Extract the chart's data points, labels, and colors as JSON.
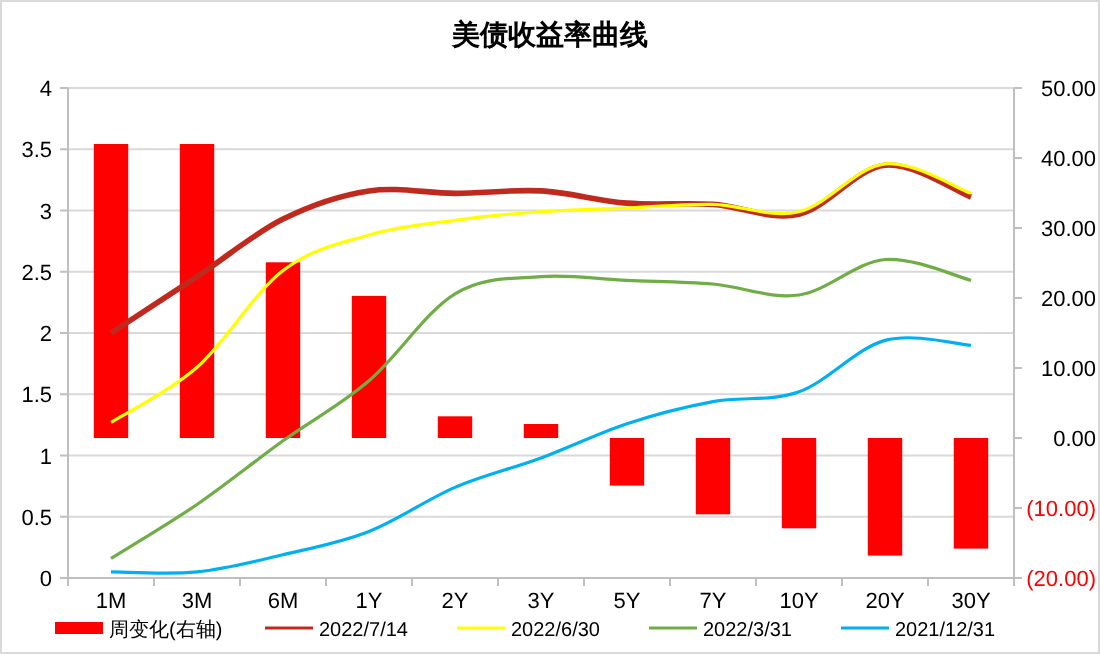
{
  "chart_data": {
    "type": "line",
    "title": "美债收益率曲线",
    "categories": [
      "1M",
      "3M",
      "6M",
      "1Y",
      "2Y",
      "3Y",
      "5Y",
      "7Y",
      "10Y",
      "20Y",
      "30Y"
    ],
    "ylim": [
      0,
      4
    ],
    "yticks": [
      0,
      0.5,
      1,
      1.5,
      2,
      2.5,
      3,
      3.5,
      4
    ],
    "y2lim": [
      -20,
      50
    ],
    "y2ticks": [
      {
        "value": -20,
        "label": "(20.00)"
      },
      {
        "value": -10,
        "label": "(10.00)"
      },
      {
        "value": 0,
        "label": "0.00"
      },
      {
        "value": 10,
        "label": "10.00"
      },
      {
        "value": 20,
        "label": "20.00"
      },
      {
        "value": 30,
        "label": "30.00"
      },
      {
        "value": 40,
        "label": "40.00"
      },
      {
        "value": 50,
        "label": "50.00"
      }
    ],
    "grid": "y",
    "legend": "bottom",
    "series": [
      {
        "name": "周变化(右轴)",
        "type": "bar",
        "axis": "y2",
        "color": "#ff0000",
        "values": [
          42,
          42,
          25.1,
          20.3,
          3.1,
          2,
          -6.8,
          -10.9,
          -12.9,
          -16.8,
          -15.8
        ]
      },
      {
        "name": "2022/7/14",
        "color": "#c0291e",
        "values": [
          2.0,
          2.46,
          2.93,
          3.16,
          3.14,
          3.16,
          3.06,
          3.05,
          2.97,
          3.37,
          3.11
        ]
      },
      {
        "name": "2022/6/30",
        "color": "#ffff00",
        "values": [
          1.27,
          1.72,
          2.51,
          2.8,
          2.92,
          2.99,
          3.02,
          3.05,
          2.99,
          3.38,
          3.14
        ]
      },
      {
        "name": "2022/3/31",
        "color": "#70ad47",
        "values": [
          0.16,
          0.6,
          1.12,
          1.61,
          2.32,
          2.46,
          2.43,
          2.4,
          2.31,
          2.6,
          2.43
        ]
      },
      {
        "name": "2021/12/31",
        "color": "#00b0f0",
        "values": [
          0.05,
          0.05,
          0.19,
          0.38,
          0.74,
          0.98,
          1.26,
          1.44,
          1.52,
          1.94,
          1.9
        ]
      }
    ]
  }
}
